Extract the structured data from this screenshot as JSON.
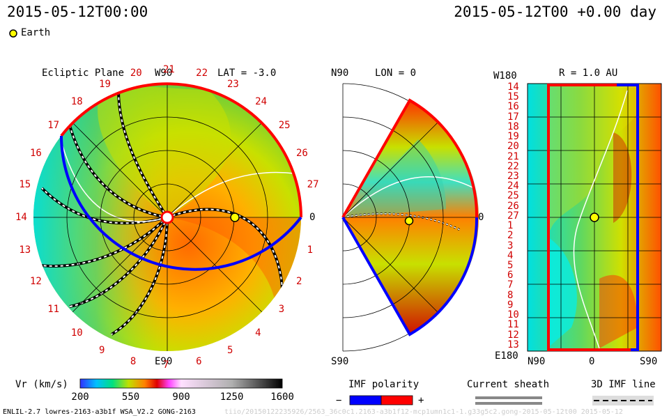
{
  "header": {
    "datetime_left": "2015-05-12T00:00",
    "datetime_right": "2015-05-12T00 +0.00 day",
    "earth_legend": "Earth"
  },
  "panels": {
    "ecliptic": {
      "title": "Ecliptic Plane",
      "top_label": "W90",
      "lat_label": "LAT = -3.0",
      "bottom_label": "E90",
      "right_label": "0",
      "carrington": [
        "1",
        "2",
        "3",
        "4",
        "5",
        "6",
        "7",
        "8",
        "9",
        "10",
        "11",
        "12",
        "13",
        "14",
        "15",
        "16",
        "17",
        "18",
        "19",
        "20",
        "21",
        "22",
        "23",
        "24",
        "25",
        "26",
        "27"
      ]
    },
    "meridional": {
      "top_label": "N90",
      "lon_label": "LON = 0",
      "bottom_label": "S90",
      "right_label": "0"
    },
    "radial": {
      "top_left_label": "W180",
      "r_label": "R = 1.0 AU",
      "bottom_left_label": "E180",
      "x_labels": [
        "N90",
        "0",
        "S90"
      ],
      "y_labels": [
        "14",
        "15",
        "16",
        "17",
        "18",
        "19",
        "20",
        "21",
        "22",
        "23",
        "24",
        "25",
        "26",
        "27",
        "1",
        "2",
        "3",
        "4",
        "5",
        "6",
        "7",
        "8",
        "9",
        "10",
        "11",
        "12",
        "13"
      ]
    }
  },
  "colorbar": {
    "title": "Vr (km/s)",
    "ticks": [
      "200",
      "550",
      "900",
      "1250",
      "1600"
    ],
    "min": 200,
    "max": 1600
  },
  "legends": {
    "imf_polarity": {
      "title": "IMF polarity",
      "minus": "−",
      "plus": "+",
      "colors": [
        "#0000ff",
        "#ff0000"
      ]
    },
    "current_sheath": {
      "title": "Current sheath"
    },
    "imf_line": {
      "title": "3D IMF line"
    }
  },
  "footer": {
    "model_info": "ENLIL-2.7 lowres-2163-a3b1f WSA_V2.2 GONG-2163",
    "run_info": "tiio/20150122235926/2563_36c0c1.2163-a3b1f12-mcp1umn1c1-1.g33g5c2.gong-2015-05-12t00  2015-05-12"
  },
  "chart_data": {
    "type": "heatmap",
    "title": "Vr (km/s)",
    "quantity": "Vr",
    "units": "km/s",
    "value_range": [
      200,
      1600
    ],
    "time": "2015-05-12T00:00",
    "earth": {
      "lat_deg": -3.0,
      "lon_deg": 0,
      "r_au": 1.0
    }
  }
}
